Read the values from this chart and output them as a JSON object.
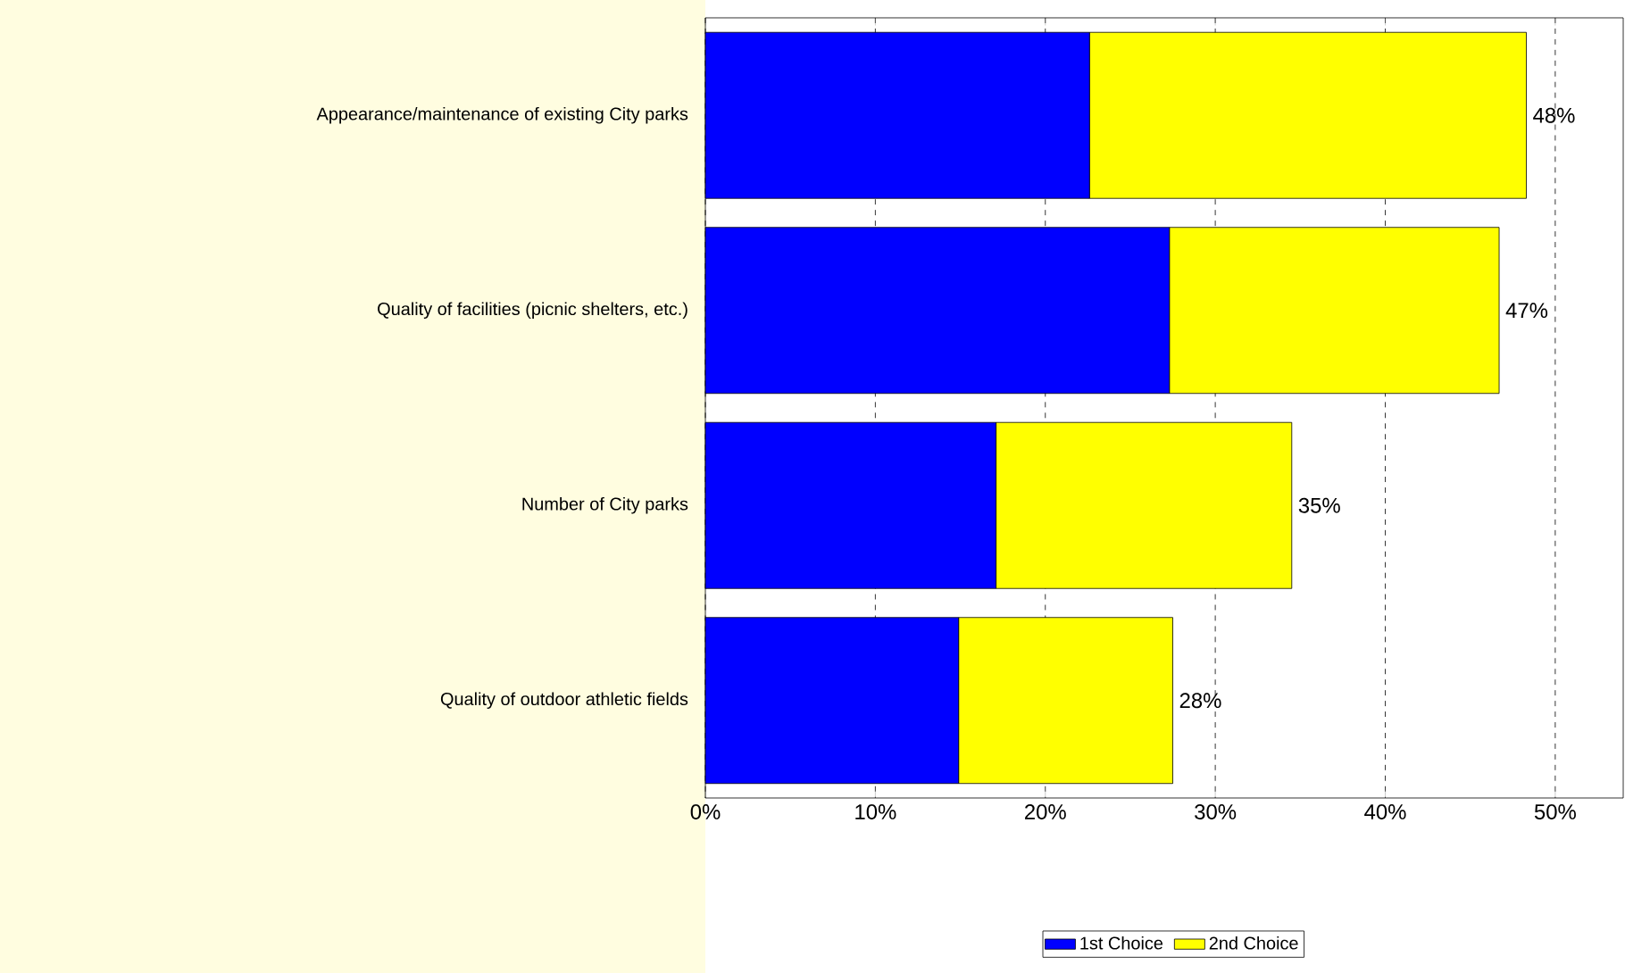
{
  "chart_data": {
    "type": "bar",
    "orientation": "horizontal",
    "stacked": true,
    "categories": [
      "Appearance/maintenance of existing City parks",
      "Quality of facilities (picnic shelters, etc.)",
      "Number of City parks",
      "Quality of outdoor athletic fields"
    ],
    "series": [
      {
        "name": "1st Choice",
        "color": "#0000ff",
        "values": [
          22.6,
          27.3,
          17.1,
          14.9
        ]
      },
      {
        "name": "2nd Choice",
        "color": "#ffff00",
        "values": [
          25.7,
          19.4,
          17.4,
          12.6
        ]
      }
    ],
    "totals": [
      "48%",
      "47%",
      "35%",
      "28%"
    ],
    "xlim": [
      0,
      54
    ],
    "xticks": [
      {
        "value": 0,
        "label": "0%"
      },
      {
        "value": 10,
        "label": "10%"
      },
      {
        "value": 20,
        "label": "20%"
      },
      {
        "value": 30,
        "label": "30%"
      },
      {
        "value": 40,
        "label": "40%"
      },
      {
        "value": 50,
        "label": "50%"
      }
    ],
    "grid": "x",
    "legend": "bottom"
  }
}
